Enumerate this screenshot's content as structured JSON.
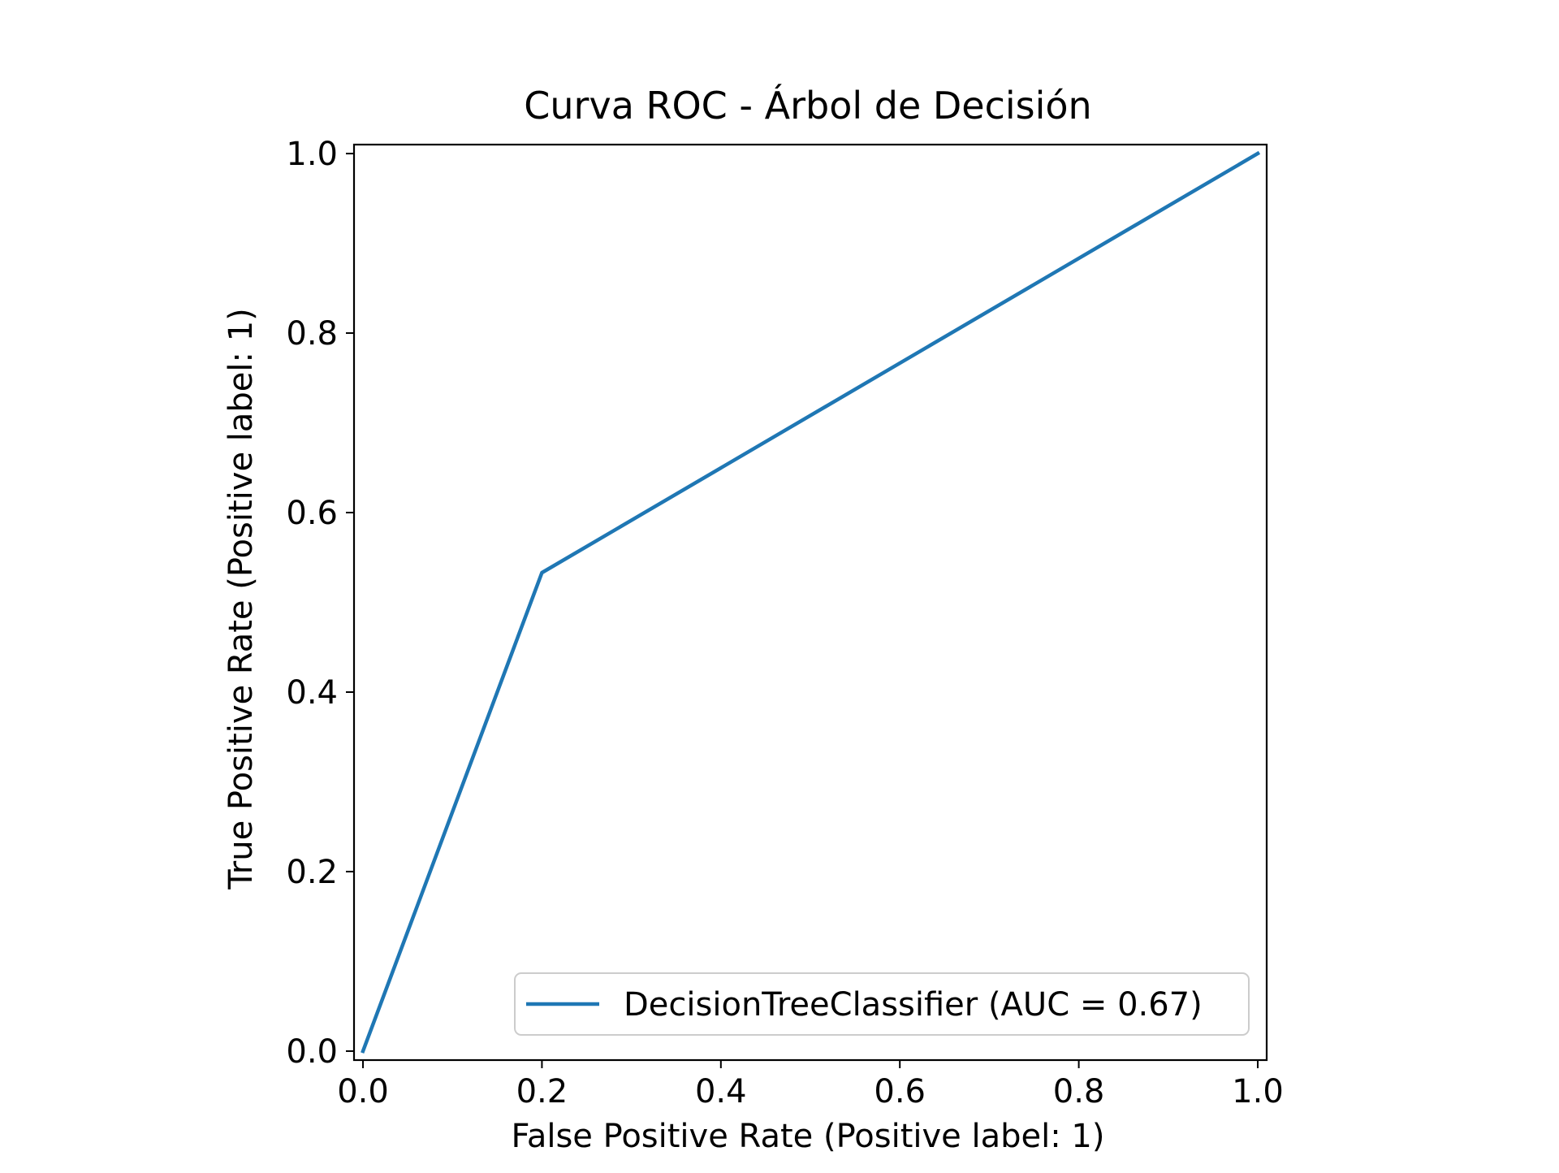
{
  "chart_data": {
    "type": "line",
    "title": "Curva ROC - Árbol de Decisión",
    "xlabel": "False Positive Rate (Positive label: 1)",
    "ylabel": "True Positive Rate (Positive label: 1)",
    "xlim": [
      -0.01,
      1.01
    ],
    "ylim": [
      -0.01,
      1.01
    ],
    "x_ticks": [
      0.0,
      0.2,
      0.4,
      0.6,
      0.8,
      1.0
    ],
    "y_ticks": [
      0.0,
      0.2,
      0.4,
      0.6,
      0.8,
      1.0
    ],
    "x_tick_labels": [
      "0.0",
      "0.2",
      "0.4",
      "0.6",
      "0.8",
      "1.0"
    ],
    "y_tick_labels": [
      "0.0",
      "0.2",
      "0.4",
      "0.6",
      "0.8",
      "1.0"
    ],
    "grid": false,
    "legend_position": "lower-right",
    "series": [
      {
        "name": "DecisionTreeClassifier (AUC = 0.67)",
        "color": "#1f77b4",
        "x": [
          0.0,
          0.2,
          1.0
        ],
        "y": [
          0.0,
          0.533,
          1.0
        ]
      }
    ]
  }
}
